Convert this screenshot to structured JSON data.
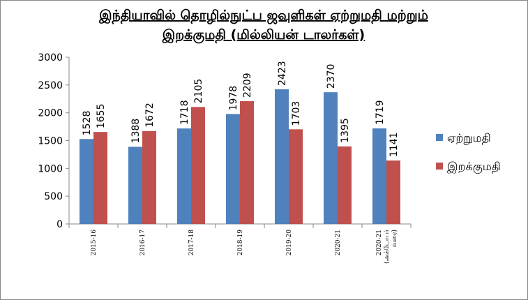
{
  "chart_data": {
    "type": "bar",
    "title": "இந்தியாவில் தொழில்நுட்ப ஜவுளிகள் ஏற்றுமதி மற்றும்\nஇறக்குமதி (மில்லியன் டாலர்கள்)",
    "categories": [
      "2015-16",
      "2016-17",
      "2017-18",
      "2018-19",
      "2019-20",
      "2020-21",
      "2020-21\n(அக்டோபர்\nவரை)"
    ],
    "series": [
      {
        "name": "ஏற்றுமதி",
        "color": "#4f81bd",
        "values": [
          1528,
          1388,
          1718,
          1978,
          2423,
          2370,
          1719
        ]
      },
      {
        "name": "இறக்குமதி",
        "color": "#c0504d",
        "values": [
          1655,
          1672,
          2105,
          2209,
          1703,
          1395,
          1141
        ]
      }
    ],
    "ylim": [
      0,
      3000
    ],
    "yticks": [
      0,
      500,
      1000,
      1500,
      2000,
      2500,
      3000
    ],
    "legend": "right"
  }
}
